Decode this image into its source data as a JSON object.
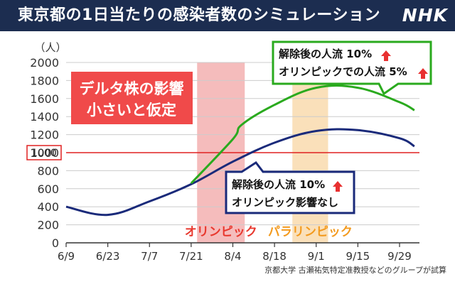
{
  "header": {
    "title": "東京都の1日当たりの感染者数のシミュレーション",
    "logo": "NHK"
  },
  "chart_data": {
    "type": "line",
    "title": "東京都の1日当たりの感染者数のシミュレーション",
    "y_unit": "（人）",
    "ylim": [
      0,
      2000
    ],
    "yticks": [
      0,
      200,
      400,
      600,
      800,
      1000,
      1200,
      1400,
      1600,
      1800,
      2000
    ],
    "xlim": [
      "6/9",
      "10/4"
    ],
    "xticks": [
      "6/9",
      "6/23",
      "7/7",
      "7/21",
      "8/4",
      "8/18",
      "9/1",
      "9/15",
      "9/29"
    ],
    "grid": true,
    "reference_line": {
      "value": 1000,
      "label": "1000",
      "color": "#e02020"
    },
    "bands": [
      {
        "label": "オリンピック",
        "start": "7/23",
        "end": "8/8",
        "color": "#f2a6a6",
        "text_color": "#e8382e"
      },
      {
        "label": "パラリンピック",
        "start": "8/24",
        "end": "9/5",
        "color": "#f8d6a3",
        "text_color": "#f39a1e"
      }
    ],
    "series": [
      {
        "color": "#1a2a7a",
        "x": [
          "6/9",
          "6/23",
          "7/7",
          "7/21",
          "8/4",
          "8/18",
          "9/1",
          "9/15",
          "9/29",
          "10/4"
        ],
        "values": [
          400,
          310,
          460,
          650,
          900,
          1110,
          1240,
          1250,
          1160,
          1070
        ]
      },
      {
        "color": "#2aaa1e",
        "x": [
          "7/21",
          "8/4",
          "8/7",
          "8/18",
          "9/1",
          "9/15",
          "9/29",
          "10/4"
        ],
        "values": [
          660,
          1150,
          1310,
          1530,
          1720,
          1720,
          1560,
          1470
        ]
      }
    ],
    "annotations": [
      {
        "lines": [
          "デルタ株の影響",
          "小さいと仮定"
        ],
        "style": "red-box"
      },
      {
        "lines": [
          "解除後の人流 10%",
          "オリンピックでの人流 5%"
        ],
        "style": "green-callout"
      },
      {
        "lines": [
          "解除後の人流 10%",
          "オリンピック影響なし"
        ],
        "style": "navy-callout"
      }
    ],
    "source": "京都大学 古瀬祐気特定准教授などのグループが試算"
  }
}
